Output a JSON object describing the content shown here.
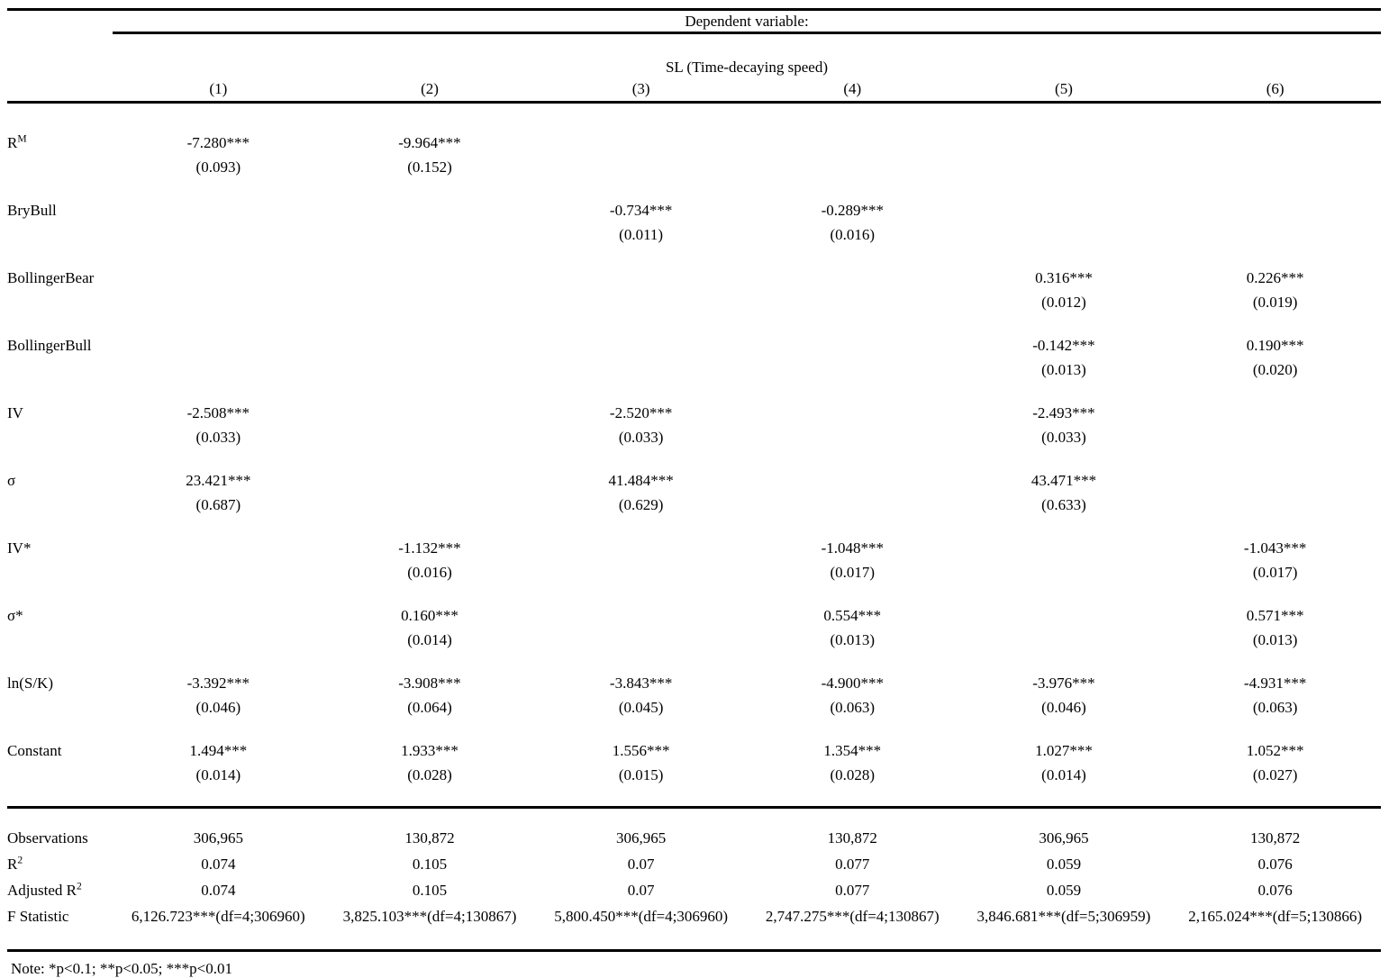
{
  "colors": {
    "text": "#000000",
    "background": "#ffffff",
    "rule": "#000000"
  },
  "table": {
    "header": {
      "dependent_variable_label": "Dependent variable:",
      "dv_group_label": "SL (Time-decaying speed)",
      "column_numbers": [
        "(1)",
        "(2)",
        "(3)",
        "(4)",
        "(5)",
        "(6)"
      ]
    },
    "coefficient_rows": [
      {
        "label": "R",
        "sup": "M",
        "cells": [
          {
            "est": "-7.280***",
            "se": "(0.093)"
          },
          {
            "est": "-9.964***",
            "se": "(0.152)"
          },
          null,
          null,
          null,
          null
        ]
      },
      {
        "label": "BryBull",
        "cells": [
          null,
          null,
          {
            "est": "-0.734***",
            "se": "(0.011)"
          },
          {
            "est": "-0.289***",
            "se": "(0.016)"
          },
          null,
          null
        ]
      },
      {
        "label": "BollingerBear",
        "cells": [
          null,
          null,
          null,
          null,
          {
            "est": "0.316***",
            "se": "(0.012)"
          },
          {
            "est": "0.226***",
            "se": "(0.019)"
          }
        ]
      },
      {
        "label": "BollingerBull",
        "cells": [
          null,
          null,
          null,
          null,
          {
            "est": "-0.142***",
            "se": "(0.013)"
          },
          {
            "est": "0.190***",
            "se": "(0.020)"
          }
        ]
      },
      {
        "label": "IV",
        "cells": [
          {
            "est": "-2.508***",
            "se": "(0.033)"
          },
          null,
          {
            "est": "-2.520***",
            "se": "(0.033)"
          },
          null,
          {
            "est": "-2.493***",
            "se": "(0.033)"
          },
          null
        ]
      },
      {
        "label": "σ",
        "cells": [
          {
            "est": "23.421***",
            "se": "(0.687)"
          },
          null,
          {
            "est": "41.484***",
            "se": "(0.629)"
          },
          null,
          {
            "est": "43.471***",
            "se": "(0.633)"
          },
          null
        ]
      },
      {
        "label": "IV*",
        "cells": [
          null,
          {
            "est": "-1.132***",
            "se": "(0.016)"
          },
          null,
          {
            "est": "-1.048***",
            "se": "(0.017)"
          },
          null,
          {
            "est": "-1.043***",
            "se": "(0.017)"
          }
        ]
      },
      {
        "label": "σ*",
        "cells": [
          null,
          {
            "est": "0.160***",
            "se": "(0.014)"
          },
          null,
          {
            "est": "0.554***",
            "se": "(0.013)"
          },
          null,
          {
            "est": "0.571***",
            "se": "(0.013)"
          }
        ]
      },
      {
        "label": "ln(S/K)",
        "cells": [
          {
            "est": "-3.392***",
            "se": "(0.046)"
          },
          {
            "est": "-3.908***",
            "se": "(0.064)"
          },
          {
            "est": "-3.843***",
            "se": "(0.045)"
          },
          {
            "est": "-4.900***",
            "se": "(0.063)"
          },
          {
            "est": "-3.976***",
            "se": "(0.046)"
          },
          {
            "est": "-4.931***",
            "se": "(0.063)"
          }
        ]
      },
      {
        "label": "Constant",
        "cells": [
          {
            "est": "1.494***",
            "se": "(0.014)"
          },
          {
            "est": "1.933***",
            "se": "(0.028)"
          },
          {
            "est": "1.556***",
            "se": "(0.015)"
          },
          {
            "est": "1.354***",
            "se": "(0.028)"
          },
          {
            "est": "1.027***",
            "se": "(0.014)"
          },
          {
            "est": "1.052***",
            "se": "(0.027)"
          }
        ]
      }
    ],
    "stats_rows": [
      {
        "label": "Observations",
        "values": [
          "306,965",
          "130,872",
          "306,965",
          "130,872",
          "306,965",
          "130,872"
        ]
      },
      {
        "label": "R",
        "sup": "2",
        "values": [
          "0.074",
          "0.105",
          "0.07",
          "0.077",
          "0.059",
          "0.076"
        ]
      },
      {
        "label": "Adjusted R",
        "sup": "2",
        "values": [
          "0.074",
          "0.105",
          "0.07",
          "0.077",
          "0.059",
          "0.076"
        ]
      },
      {
        "label": "F Statistic",
        "values": [
          "6,126.723***(df=4;306960)",
          "3,825.103***(df=4;130867)",
          "5,800.450***(df=4;306960)",
          "2,747.275***(df=4;130867)",
          "3,846.681***(df=5;306959)",
          "2,165.024***(df=5;130866)"
        ]
      }
    ],
    "note": "Note: *p<0.1; **p<0.05; ***p<0.01"
  }
}
